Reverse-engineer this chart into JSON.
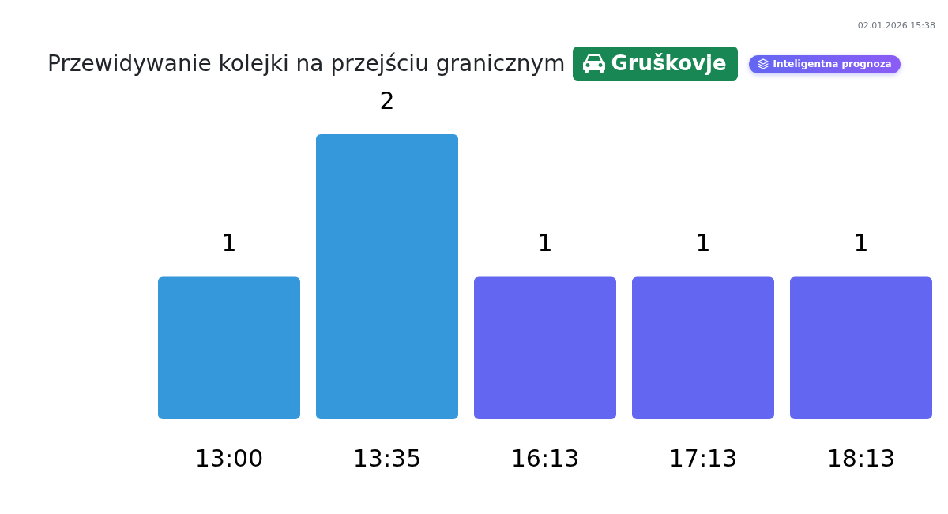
{
  "chart_data": {
    "type": "bar",
    "title": "Przewidywanie kolejki na przejściu granicznym",
    "subtitle": "Gruškovje",
    "annotations": [
      "Inteligentna prognoza",
      "02.01.2026 15:38"
    ],
    "categories": [
      "13:00",
      "13:35",
      "16:13",
      "17:13",
      "18:13"
    ],
    "values": [
      1,
      2,
      1,
      1,
      1
    ],
    "colors": [
      "#3498db",
      "#3498db",
      "#6366f1",
      "#6366f1",
      "#6366f1"
    ],
    "data_labels": true,
    "tick_labels": "x"
  }
}
